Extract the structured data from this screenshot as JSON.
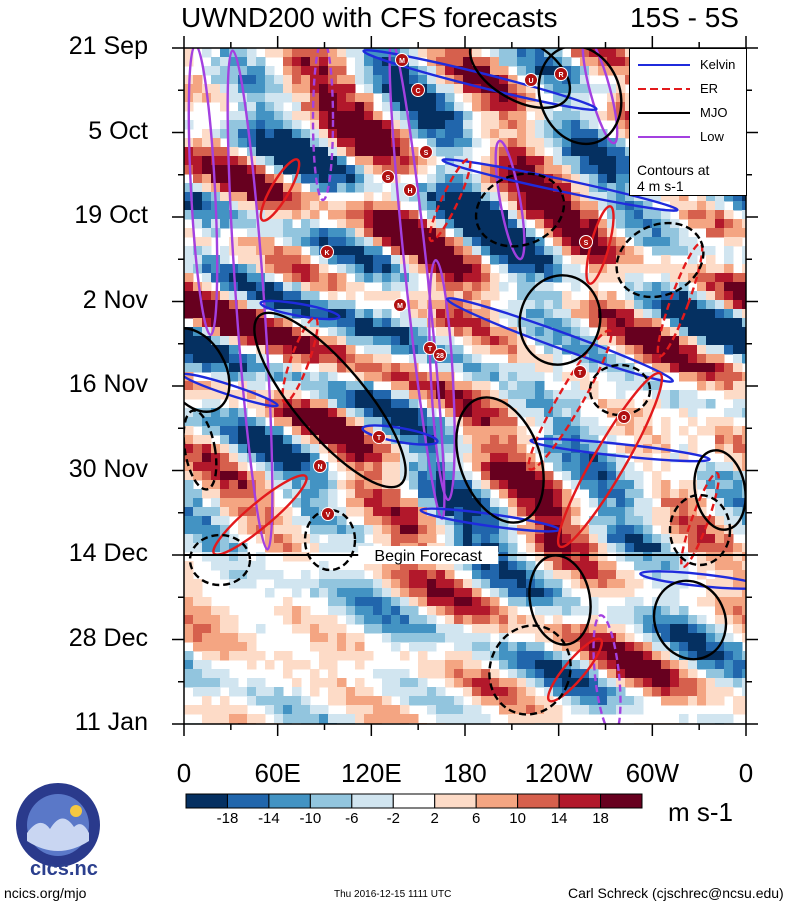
{
  "chart_data": {
    "type": "heatmap",
    "title": "UWND200 with CFS forecasts",
    "region": "15S - 5S",
    "y_labels": [
      "21 Sep",
      "5 Oct",
      "19 Oct",
      "2 Nov",
      "16 Nov",
      "30 Nov",
      "14 Dec",
      "28 Dec",
      "11 Jan"
    ],
    "x_labels": [
      "0",
      "60E",
      "120E",
      "180",
      "120W",
      "60W",
      "0"
    ],
    "x_range_deg_east": [
      0,
      360
    ],
    "time_range": [
      "21 Sep 2016",
      "11 Jan 2017"
    ],
    "forecast_start": "14 Dec",
    "forecast_label": "Begin Forecast",
    "colorbar": {
      "units": "m s-1",
      "ticks": [
        -18,
        -14,
        -10,
        -6,
        -2,
        2,
        6,
        10,
        14,
        18
      ],
      "colors": [
        "#053061",
        "#2166ac",
        "#4393c3",
        "#92c5de",
        "#d1e5f0",
        "#ffffff",
        "#fddbc7",
        "#f4a582",
        "#d6604d",
        "#b2182b",
        "#67001f"
      ]
    },
    "legend": {
      "entries": [
        {
          "name": "Kelvin",
          "color": "#1f2bdc",
          "dashed": false
        },
        {
          "name": "ER",
          "color": "#e31a1c",
          "dashed": true
        },
        {
          "name": "MJO",
          "color": "#000000",
          "dashed": false
        },
        {
          "name": "Low",
          "color": "#a340e0",
          "dashed": false
        }
      ],
      "note_line1": "Contours at",
      "note_line2": "4 m s-1"
    },
    "storm_markers": [
      "M",
      "C",
      "U",
      "R",
      "S",
      "S",
      "H",
      "S",
      "K",
      "M",
      "T",
      "28",
      "T",
      "O",
      "T",
      "N",
      "V"
    ]
  },
  "footer": {
    "left": "ncics.org/mjo",
    "center": "Thu 2016-12-15 1111 UTC",
    "right": "Carl Schreck (cjschrec@ncsu.edu)",
    "logo_text": "cics.nc",
    "logo_ring_text": "Cooperative Institute for Climate and Satellites"
  }
}
